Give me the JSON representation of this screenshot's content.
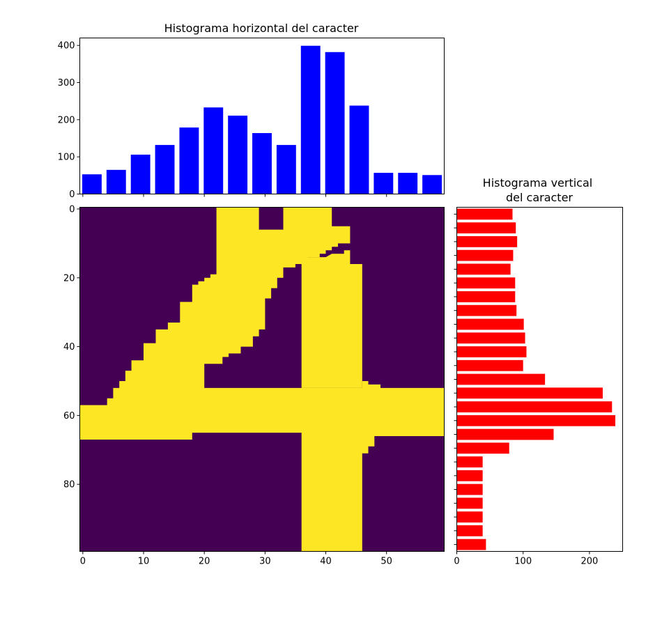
{
  "chart_data": [
    {
      "type": "bar",
      "title": "Histograma horizontal del caracter",
      "bar_color": "#0000ff",
      "x": [
        1.5,
        5.5,
        9.5,
        13.5,
        17.5,
        21.5,
        25.5,
        29.5,
        33.5,
        37.5,
        41.5,
        45.5,
        49.5,
        53.5,
        57.5
      ],
      "values": [
        53,
        65,
        106,
        132,
        179,
        233,
        211,
        164,
        132,
        399,
        382,
        238,
        57,
        57,
        51
      ],
      "yticks": [
        "0",
        "100",
        "200",
        "300",
        "400"
      ],
      "ylim": [
        0,
        420
      ],
      "xlim": [
        -0.5,
        59.5
      ],
      "x_ticklabels_shown": false,
      "grid": false
    },
    {
      "type": "heatmap",
      "colormap": "viridis",
      "colors": {
        "low": "#440154",
        "high": "#fde725"
      },
      "xticks": [
        "0",
        "10",
        "20",
        "30",
        "40",
        "50"
      ],
      "yticks": [
        "0",
        "20",
        "40",
        "60",
        "80"
      ],
      "xlim": [
        -0.5,
        59.5
      ],
      "ylim": [
        99.5,
        -0.5
      ],
      "description": "binary image of the handwritten digit 4"
    },
    {
      "type": "bar",
      "orientation": "horizontal",
      "title": "Histograma vertical\ndel caracter",
      "title_lines": [
        "Histograma vertical",
        "del caracter"
      ],
      "bar_color": "#ff0000",
      "y": [
        1.5,
        5.5,
        9.5,
        13.5,
        17.5,
        21.5,
        25.5,
        29.5,
        33.5,
        37.5,
        41.5,
        45.5,
        49.5,
        53.5,
        57.5,
        61.5,
        65.5,
        69.5,
        73.5,
        77.5,
        81.5,
        85.5,
        89.5,
        93.5,
        97.5
      ],
      "values": [
        84,
        89,
        91,
        85,
        81,
        88,
        88,
        90,
        101,
        103,
        105,
        100,
        133,
        220,
        234,
        239,
        146,
        79,
        39,
        39,
        39,
        39,
        39,
        39,
        44
      ],
      "xticks": [
        "0",
        "100",
        "200"
      ],
      "xlim": [
        0,
        250
      ],
      "ylim": [
        99.5,
        -0.5
      ],
      "y_ticklabels_shown": false,
      "grid": false
    }
  ]
}
